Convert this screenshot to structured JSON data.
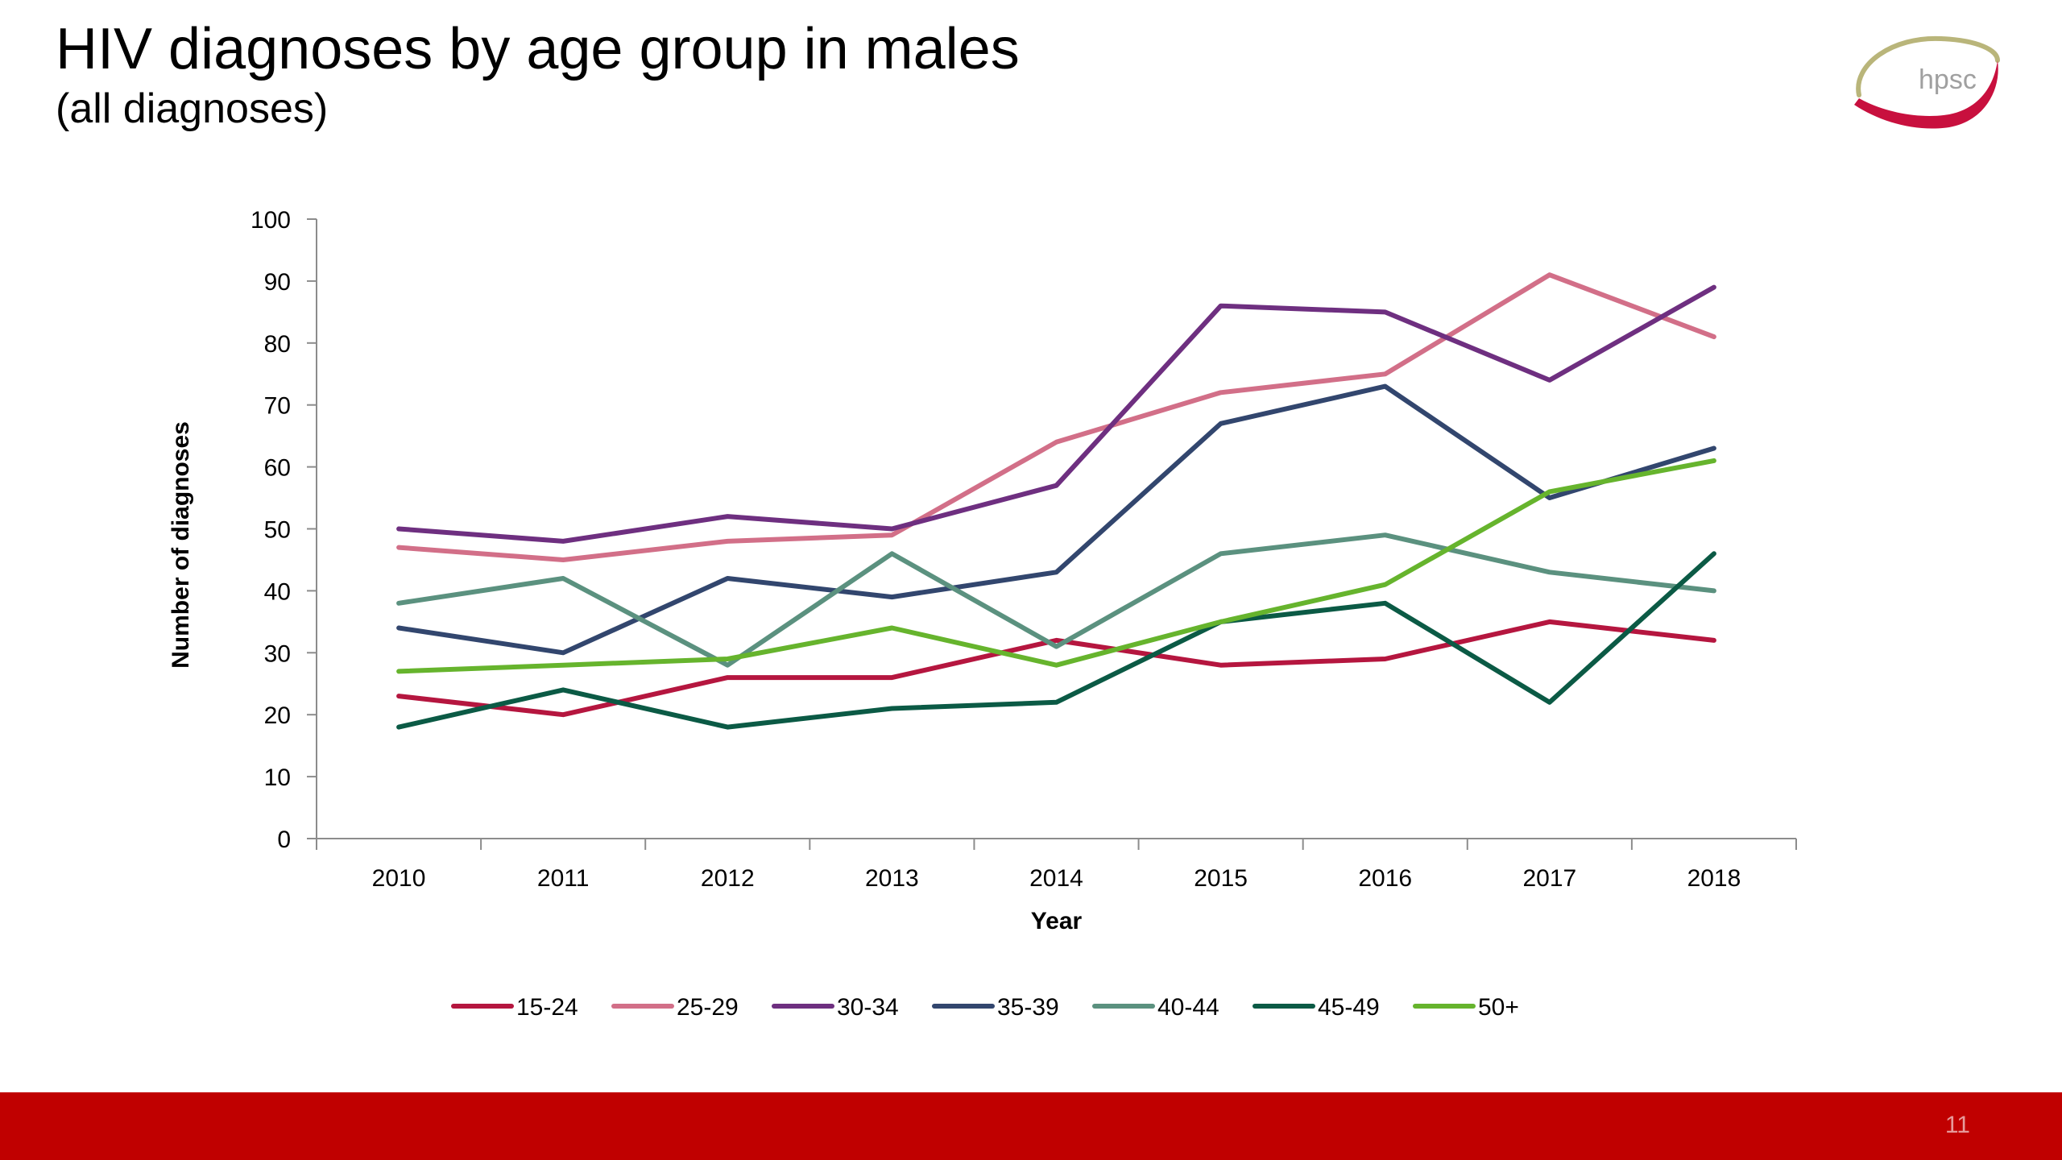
{
  "slide": {
    "title": "HIV diagnoses by age group in males",
    "subtitle": "(all diagnoses)",
    "page_number": "11",
    "logo_text": "hpsc",
    "footer_color": "#c00000"
  },
  "chart_data": {
    "type": "line",
    "title": "",
    "xlabel": "Year",
    "ylabel": "Number of diagnoses",
    "ylim": [
      0,
      100
    ],
    "yticks": [
      0,
      10,
      20,
      30,
      40,
      50,
      60,
      70,
      80,
      90,
      100
    ],
    "grid": false,
    "legend_position": "bottom",
    "categories": [
      "2010",
      "2011",
      "2012",
      "2013",
      "2014",
      "2015",
      "2016",
      "2017",
      "2018"
    ],
    "series": [
      {
        "name": "15-24",
        "color": "#b5163f",
        "values": [
          23,
          20,
          26,
          26,
          32,
          28,
          29,
          35,
          32
        ]
      },
      {
        "name": "25-29",
        "color": "#d26f88",
        "values": [
          47,
          45,
          48,
          49,
          64,
          72,
          75,
          91,
          81
        ]
      },
      {
        "name": "30-34",
        "color": "#6e2f80",
        "values": [
          50,
          48,
          52,
          50,
          57,
          86,
          85,
          74,
          89
        ]
      },
      {
        "name": "35-39",
        "color": "#32466e",
        "values": [
          34,
          30,
          42,
          39,
          43,
          67,
          73,
          55,
          63
        ]
      },
      {
        "name": "40-44",
        "color": "#5b917f",
        "values": [
          38,
          42,
          28,
          46,
          31,
          46,
          49,
          43,
          40
        ]
      },
      {
        "name": "45-49",
        "color": "#0b5a45",
        "values": [
          18,
          24,
          18,
          21,
          22,
          35,
          38,
          22,
          46
        ]
      },
      {
        "name": "50+",
        "color": "#66b42d",
        "values": [
          27,
          28,
          29,
          34,
          28,
          35,
          41,
          56,
          61
        ]
      }
    ]
  }
}
